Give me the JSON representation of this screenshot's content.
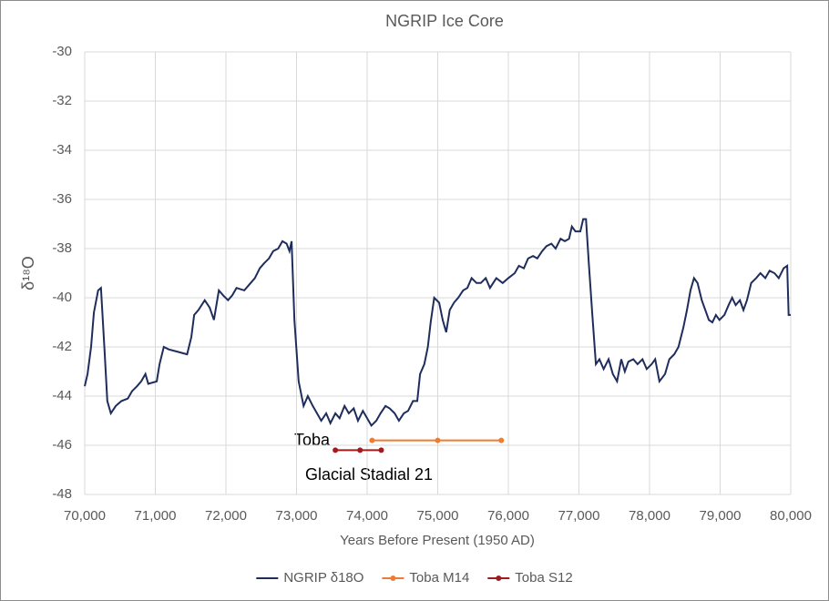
{
  "chart_data": {
    "type": "line",
    "title": "NGRIP Ice Core",
    "x_label": "Years Before Present (1950 AD)",
    "y_label": "δ¹⁸O",
    "annotations": [
      "Toba",
      "Glacial Stadial 21"
    ],
    "xlim": [
      70000,
      80000
    ],
    "xticks": [
      {
        "value": 70000,
        "label": "70,000"
      },
      {
        "value": 71000,
        "label": "71,000"
      },
      {
        "value": 72000,
        "label": "72,000"
      },
      {
        "value": 73000,
        "label": "73,000"
      },
      {
        "value": 74000,
        "label": "74,000"
      },
      {
        "value": 75000,
        "label": "75,000"
      },
      {
        "value": 76000,
        "label": "76,000"
      },
      {
        "value": 77000,
        "label": "77,000"
      },
      {
        "value": 78000,
        "label": "78,000"
      },
      {
        "value": 79000,
        "label": "79,000"
      },
      {
        "value": 80000,
        "label": "80,000"
      }
    ],
    "ylim": [
      -48,
      -30
    ],
    "yticks": [
      -30,
      -32,
      -34,
      -36,
      -38,
      -40,
      -42,
      -44,
      -46,
      -48
    ],
    "grid": true,
    "legend": "bottom",
    "series": [
      {
        "name": "NGRIP δ18O",
        "color": "#1f2d5c",
        "marker": false,
        "x": [
          70000,
          70040,
          70090,
          70130,
          70190,
          70230,
          70280,
          70320,
          70370,
          70440,
          70520,
          70610,
          70670,
          70740,
          70800,
          70860,
          70900,
          71020,
          71060,
          71120,
          71190,
          71320,
          71450,
          71510,
          71550,
          71610,
          71700,
          71770,
          71830,
          71900,
          71960,
          72030,
          72090,
          72150,
          72260,
          72350,
          72410,
          72480,
          72540,
          72610,
          72670,
          72740,
          72800,
          72860,
          72900,
          72930,
          72970,
          73030,
          73100,
          73160,
          73230,
          73290,
          73350,
          73420,
          73480,
          73550,
          73610,
          73680,
          73740,
          73810,
          73870,
          73940,
          74000,
          74060,
          74130,
          74190,
          74260,
          74320,
          74390,
          74450,
          74520,
          74580,
          74650,
          74710,
          74750,
          74810,
          74860,
          74900,
          74950,
          75020,
          75070,
          75120,
          75170,
          75230,
          75290,
          75360,
          75420,
          75480,
          75550,
          75610,
          75680,
          75740,
          75830,
          75920,
          76000,
          76090,
          76150,
          76220,
          76280,
          76350,
          76410,
          76480,
          76540,
          76610,
          76670,
          76740,
          76800,
          76860,
          76900,
          76950,
          77020,
          77060,
          77100,
          77140,
          77190,
          77240,
          77290,
          77350,
          77420,
          77480,
          77540,
          77600,
          77650,
          77700,
          77770,
          77830,
          77900,
          77960,
          78030,
          78080,
          78140,
          78220,
          78280,
          78350,
          78410,
          78480,
          78530,
          78580,
          78630,
          78680,
          78740,
          78790,
          78840,
          78890,
          78940,
          78990,
          79060,
          79120,
          79170,
          79220,
          79280,
          79330,
          79380,
          79440,
          79510,
          79570,
          79640,
          79700,
          79770,
          79830,
          79900,
          79950,
          79970,
          80000
        ],
        "values": [
          -43.6,
          -43.1,
          -42.0,
          -40.6,
          -39.7,
          -39.6,
          -42.1,
          -44.2,
          -44.7,
          -44.4,
          -44.2,
          -44.1,
          -43.8,
          -43.6,
          -43.4,
          -43.1,
          -43.5,
          -43.4,
          -42.7,
          -42.0,
          -42.1,
          -42.2,
          -42.3,
          -41.6,
          -40.7,
          -40.5,
          -40.1,
          -40.4,
          -40.9,
          -39.7,
          -39.9,
          -40.1,
          -39.9,
          -39.6,
          -39.7,
          -39.4,
          -39.2,
          -38.8,
          -38.6,
          -38.4,
          -38.1,
          -38.0,
          -37.7,
          -37.8,
          -38.1,
          -37.7,
          -40.9,
          -43.4,
          -44.4,
          -44.0,
          -44.4,
          -44.7,
          -45.0,
          -44.7,
          -45.1,
          -44.7,
          -44.9,
          -44.4,
          -44.7,
          -44.5,
          -45.0,
          -44.6,
          -44.9,
          -45.2,
          -45.0,
          -44.7,
          -44.4,
          -44.5,
          -44.7,
          -45.0,
          -44.7,
          -44.6,
          -44.2,
          -44.2,
          -43.1,
          -42.7,
          -42.0,
          -41.0,
          -40.0,
          -40.2,
          -40.9,
          -41.4,
          -40.5,
          -40.2,
          -40.0,
          -39.7,
          -39.6,
          -39.2,
          -39.4,
          -39.4,
          -39.2,
          -39.6,
          -39.2,
          -39.4,
          -39.2,
          -39.0,
          -38.7,
          -38.8,
          -38.4,
          -38.3,
          -38.4,
          -38.1,
          -37.9,
          -37.8,
          -38.0,
          -37.6,
          -37.7,
          -37.6,
          -37.1,
          -37.3,
          -37.3,
          -36.8,
          -36.8,
          -38.6,
          -40.7,
          -42.7,
          -42.5,
          -42.9,
          -42.5,
          -43.1,
          -43.4,
          -42.5,
          -43.0,
          -42.6,
          -42.5,
          -42.7,
          -42.5,
          -42.9,
          -42.7,
          -42.5,
          -43.4,
          -43.1,
          -42.5,
          -42.3,
          -42.0,
          -41.2,
          -40.5,
          -39.7,
          -39.2,
          -39.4,
          -40.1,
          -40.5,
          -40.9,
          -41.0,
          -40.7,
          -40.9,
          -40.7,
          -40.3,
          -40.0,
          -40.3,
          -40.1,
          -40.5,
          -40.1,
          -39.4,
          -39.2,
          -39.0,
          -39.2,
          -38.9,
          -39.0,
          -39.2,
          -38.8,
          -38.7,
          -40.7,
          -40.7
        ]
      },
      {
        "name": "Toba M14",
        "color": "#ed7d31",
        "marker": true,
        "x": [
          74070,
          75000,
          75900
        ],
        "values": [
          -45.8,
          -45.8,
          -45.8
        ]
      },
      {
        "name": "Toba S12",
        "color": "#a01c1c",
        "marker": true,
        "x": [
          73550,
          73900,
          74200
        ],
        "values": [
          -46.2,
          -46.2,
          -46.2
        ]
      }
    ]
  }
}
